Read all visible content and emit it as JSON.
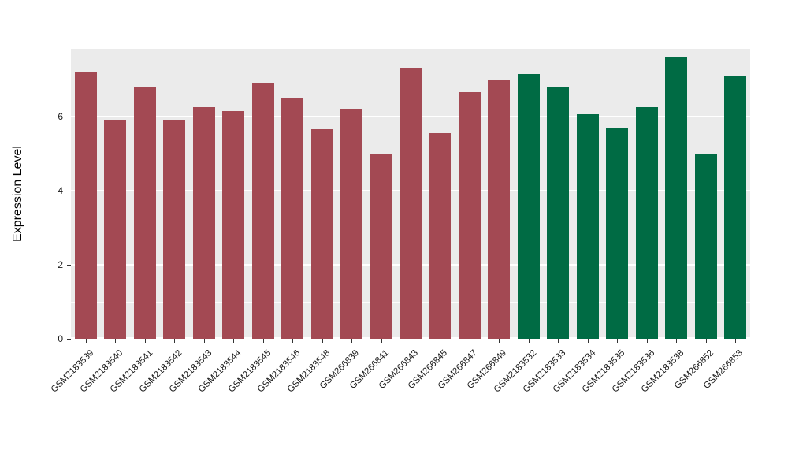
{
  "chart_data": {
    "type": "bar",
    "title": "",
    "xlabel": "",
    "ylabel": "Expression Level",
    "ylim": [
      0,
      7.82
    ],
    "yticks": [
      0,
      2,
      4,
      6
    ],
    "minor_ticks": [
      1,
      3,
      5,
      7
    ],
    "grid": true,
    "legend": "none",
    "panel_background": "#EBEBEB",
    "group_colors": {
      "groupA": "#A34953",
      "groupB": "#006B44"
    },
    "categories": [
      "GSM2183539",
      "GSM2183540",
      "GSM2183541",
      "GSM2183542",
      "GSM2183543",
      "GSM2183544",
      "GSM2183545",
      "GSM2183546",
      "GSM2183548",
      "GSM266839",
      "GSM266841",
      "GSM266843",
      "GSM266845",
      "GSM266847",
      "GSM266849",
      "GSM2183532",
      "GSM2183533",
      "GSM2183534",
      "GSM2183535",
      "GSM2183536",
      "GSM2183538",
      "GSM266852",
      "GSM266853"
    ],
    "values": [
      7.2,
      5.9,
      6.8,
      5.9,
      6.25,
      6.15,
      6.9,
      6.5,
      5.65,
      6.2,
      5.0,
      7.3,
      5.55,
      6.65,
      7.0,
      7.15,
      6.8,
      6.05,
      5.7,
      6.25,
      7.6,
      5.0,
      7.1
    ],
    "groups": [
      "groupA",
      "groupA",
      "groupA",
      "groupA",
      "groupA",
      "groupA",
      "groupA",
      "groupA",
      "groupA",
      "groupA",
      "groupA",
      "groupA",
      "groupA",
      "groupA",
      "groupA",
      "groupB",
      "groupB",
      "groupB",
      "groupB",
      "groupB",
      "groupB",
      "groupB",
      "groupB"
    ]
  }
}
